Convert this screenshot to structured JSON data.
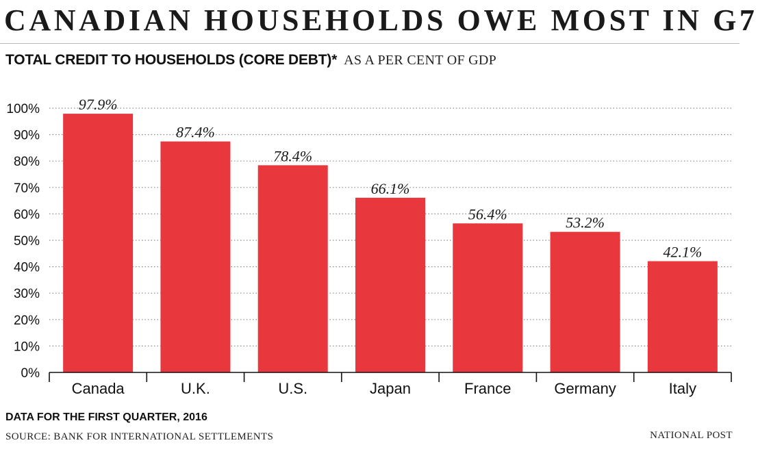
{
  "title": "CANADIAN HOUSEHOLDS OWE MOST IN G7",
  "subtitle_bold": "TOTAL CREDIT TO HOUSEHOLDS (CORE DEBT)*",
  "subtitle_unit": "AS A PER CENT OF GDP",
  "footnote": "DATA FOR THE FIRST QUARTER, 2016",
  "source": "SOURCE: BANK FOR INTERNATIONAL SETTLEMENTS",
  "credit": "NATIONAL POST",
  "colors": {
    "bar": "#e8373d",
    "grid": "#8a8a8a",
    "axis": "#111111"
  },
  "chart_data": {
    "type": "bar",
    "categories": [
      "Canada",
      "U.K.",
      "U.S.",
      "Japan",
      "France",
      "Germany",
      "Italy"
    ],
    "values": [
      97.9,
      87.4,
      78.4,
      66.1,
      56.4,
      53.2,
      42.1
    ],
    "data_labels": [
      "97.9%",
      "87.4%",
      "78.4%",
      "66.1%",
      "56.4%",
      "53.2%",
      "42.1%"
    ],
    "y_ticks": [
      0,
      10,
      20,
      30,
      40,
      50,
      60,
      70,
      80,
      90,
      100
    ],
    "y_tick_labels": [
      "0%",
      "10%",
      "20%",
      "30%",
      "40%",
      "50%",
      "60%",
      "70%",
      "80%",
      "90%",
      "100%"
    ],
    "ylim": [
      0,
      100
    ],
    "grid": true,
    "legend": "none"
  }
}
